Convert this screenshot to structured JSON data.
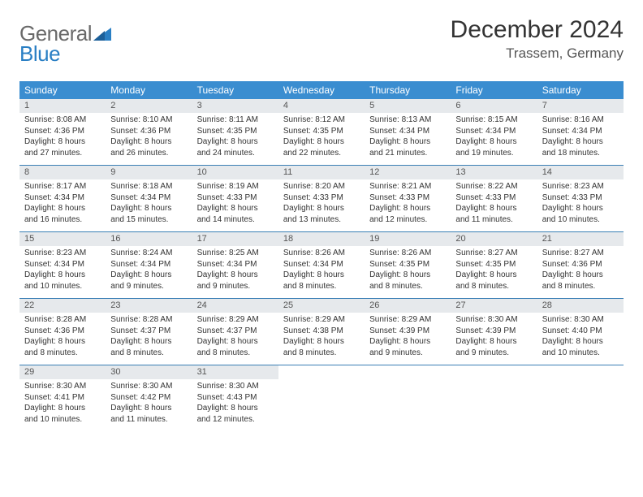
{
  "logo": {
    "word1": "General",
    "word2": "Blue"
  },
  "title": "December 2024",
  "location": "Trassem, Germany",
  "colors": {
    "header_bg": "#3a8dd0",
    "header_text": "#ffffff",
    "daynum_bg": "#e6e9ec",
    "week_border": "#3a7fb5",
    "logo_gray": "#6a6a6a",
    "logo_blue": "#2a7fc4"
  },
  "day_headers": [
    "Sunday",
    "Monday",
    "Tuesday",
    "Wednesday",
    "Thursday",
    "Friday",
    "Saturday"
  ],
  "weeks": [
    [
      {
        "n": "1",
        "sr": "8:08 AM",
        "ss": "4:36 PM",
        "dl": "8 hours and 27 minutes."
      },
      {
        "n": "2",
        "sr": "8:10 AM",
        "ss": "4:36 PM",
        "dl": "8 hours and 26 minutes."
      },
      {
        "n": "3",
        "sr": "8:11 AM",
        "ss": "4:35 PM",
        "dl": "8 hours and 24 minutes."
      },
      {
        "n": "4",
        "sr": "8:12 AM",
        "ss": "4:35 PM",
        "dl": "8 hours and 22 minutes."
      },
      {
        "n": "5",
        "sr": "8:13 AM",
        "ss": "4:34 PM",
        "dl": "8 hours and 21 minutes."
      },
      {
        "n": "6",
        "sr": "8:15 AM",
        "ss": "4:34 PM",
        "dl": "8 hours and 19 minutes."
      },
      {
        "n": "7",
        "sr": "8:16 AM",
        "ss": "4:34 PM",
        "dl": "8 hours and 18 minutes."
      }
    ],
    [
      {
        "n": "8",
        "sr": "8:17 AM",
        "ss": "4:34 PM",
        "dl": "8 hours and 16 minutes."
      },
      {
        "n": "9",
        "sr": "8:18 AM",
        "ss": "4:34 PM",
        "dl": "8 hours and 15 minutes."
      },
      {
        "n": "10",
        "sr": "8:19 AM",
        "ss": "4:33 PM",
        "dl": "8 hours and 14 minutes."
      },
      {
        "n": "11",
        "sr": "8:20 AM",
        "ss": "4:33 PM",
        "dl": "8 hours and 13 minutes."
      },
      {
        "n": "12",
        "sr": "8:21 AM",
        "ss": "4:33 PM",
        "dl": "8 hours and 12 minutes."
      },
      {
        "n": "13",
        "sr": "8:22 AM",
        "ss": "4:33 PM",
        "dl": "8 hours and 11 minutes."
      },
      {
        "n": "14",
        "sr": "8:23 AM",
        "ss": "4:33 PM",
        "dl": "8 hours and 10 minutes."
      }
    ],
    [
      {
        "n": "15",
        "sr": "8:23 AM",
        "ss": "4:34 PM",
        "dl": "8 hours and 10 minutes."
      },
      {
        "n": "16",
        "sr": "8:24 AM",
        "ss": "4:34 PM",
        "dl": "8 hours and 9 minutes."
      },
      {
        "n": "17",
        "sr": "8:25 AM",
        "ss": "4:34 PM",
        "dl": "8 hours and 9 minutes."
      },
      {
        "n": "18",
        "sr": "8:26 AM",
        "ss": "4:34 PM",
        "dl": "8 hours and 8 minutes."
      },
      {
        "n": "19",
        "sr": "8:26 AM",
        "ss": "4:35 PM",
        "dl": "8 hours and 8 minutes."
      },
      {
        "n": "20",
        "sr": "8:27 AM",
        "ss": "4:35 PM",
        "dl": "8 hours and 8 minutes."
      },
      {
        "n": "21",
        "sr": "8:27 AM",
        "ss": "4:36 PM",
        "dl": "8 hours and 8 minutes."
      }
    ],
    [
      {
        "n": "22",
        "sr": "8:28 AM",
        "ss": "4:36 PM",
        "dl": "8 hours and 8 minutes."
      },
      {
        "n": "23",
        "sr": "8:28 AM",
        "ss": "4:37 PM",
        "dl": "8 hours and 8 minutes."
      },
      {
        "n": "24",
        "sr": "8:29 AM",
        "ss": "4:37 PM",
        "dl": "8 hours and 8 minutes."
      },
      {
        "n": "25",
        "sr": "8:29 AM",
        "ss": "4:38 PM",
        "dl": "8 hours and 8 minutes."
      },
      {
        "n": "26",
        "sr": "8:29 AM",
        "ss": "4:39 PM",
        "dl": "8 hours and 9 minutes."
      },
      {
        "n": "27",
        "sr": "8:30 AM",
        "ss": "4:39 PM",
        "dl": "8 hours and 9 minutes."
      },
      {
        "n": "28",
        "sr": "8:30 AM",
        "ss": "4:40 PM",
        "dl": "8 hours and 10 minutes."
      }
    ],
    [
      {
        "n": "29",
        "sr": "8:30 AM",
        "ss": "4:41 PM",
        "dl": "8 hours and 10 minutes."
      },
      {
        "n": "30",
        "sr": "8:30 AM",
        "ss": "4:42 PM",
        "dl": "8 hours and 11 minutes."
      },
      {
        "n": "31",
        "sr": "8:30 AM",
        "ss": "4:43 PM",
        "dl": "8 hours and 12 minutes."
      },
      null,
      null,
      null,
      null
    ]
  ],
  "labels": {
    "sunrise": "Sunrise:",
    "sunset": "Sunset:",
    "daylight": "Daylight:"
  }
}
